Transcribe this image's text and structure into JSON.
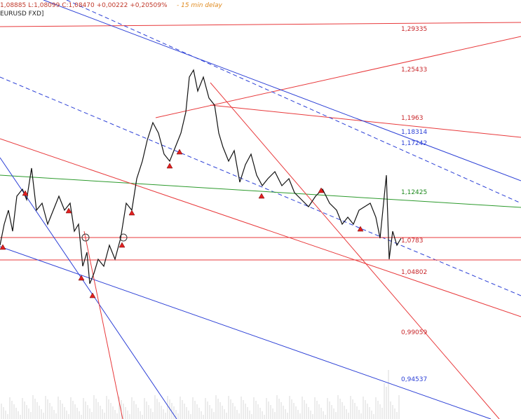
{
  "header": {
    "quote": "1,08885 L:1,08099 C:1,08470 +0,00222 +0,20509%",
    "delay": "- 15 min delay",
    "symbol": "EURUSD FXD]"
  },
  "levels": [
    {
      "label": "1,29335"
    },
    {
      "label": "1,25433"
    },
    {
      "label": "1,1963"
    },
    {
      "label": "1,18314"
    },
    {
      "label": "1,17242"
    },
    {
      "label": "1,12425"
    },
    {
      "label": "1,0783"
    },
    {
      "label": "1,04802"
    },
    {
      "label": "0,99059"
    },
    {
      "label": "0,94537"
    }
  ]
}
